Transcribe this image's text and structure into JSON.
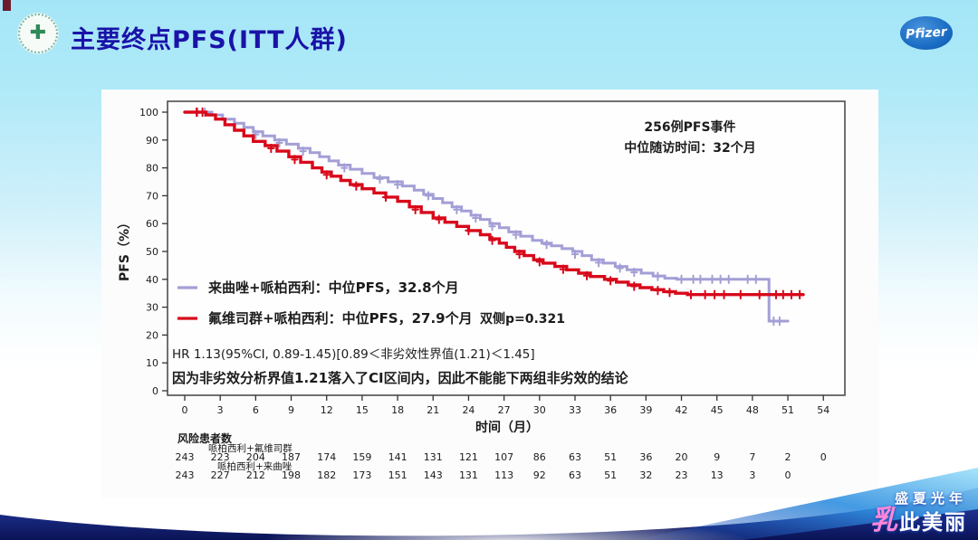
{
  "header": {
    "title": "主要终点PFS(ITT人群)",
    "logo_icon": "hospital-green-cross-emblem",
    "pfizer_label": "Pfizer"
  },
  "chart_data": {
    "type": "line",
    "subtype": "kaplan-meier-step",
    "title": "",
    "xlabel": "时间（月）",
    "ylabel": "PFS（%）",
    "xlim": [
      0,
      54
    ],
    "ylim": [
      0,
      100
    ],
    "xticks": [
      0,
      3,
      6,
      9,
      12,
      15,
      18,
      21,
      24,
      27,
      30,
      33,
      36,
      39,
      42,
      45,
      48,
      51,
      54
    ],
    "yticks": [
      0,
      10,
      20,
      30,
      40,
      50,
      60,
      70,
      80,
      90,
      100
    ],
    "grid": false,
    "annotation": {
      "line1": "256例PFS事件",
      "line2": "中位随访时间：32个月"
    },
    "series": [
      {
        "name": "来曲唑+哌柏西利",
        "legend_label": "来曲唑+哌柏西利：中位PFS，32.8个月",
        "median_months": 32.8,
        "line_color": "#a39fd6",
        "text_color": "#7b3fc0",
        "steps": [
          [
            0,
            100
          ],
          [
            2.3,
            99
          ],
          [
            3.2,
            97.5
          ],
          [
            4.2,
            96
          ],
          [
            5,
            94.5
          ],
          [
            5.8,
            93
          ],
          [
            6.6,
            91.5
          ],
          [
            7.6,
            90
          ],
          [
            8.6,
            88.5
          ],
          [
            9.6,
            87
          ],
          [
            10.6,
            85.5
          ],
          [
            11.4,
            84
          ],
          [
            12.2,
            82.5
          ],
          [
            13,
            81
          ],
          [
            14,
            79.5
          ],
          [
            15,
            78
          ],
          [
            16,
            76.5
          ],
          [
            17.2,
            75
          ],
          [
            18.4,
            73.5
          ],
          [
            19.4,
            72
          ],
          [
            20.2,
            70.5
          ],
          [
            21,
            69
          ],
          [
            21.8,
            67.5
          ],
          [
            22.6,
            66
          ],
          [
            23.4,
            64.5
          ],
          [
            24.2,
            63
          ],
          [
            25,
            61.5
          ],
          [
            25.8,
            60
          ],
          [
            26.6,
            58.5
          ],
          [
            27.4,
            57
          ],
          [
            28.4,
            55.5
          ],
          [
            29.4,
            54
          ],
          [
            30.2,
            53
          ],
          [
            31,
            52
          ],
          [
            31.9,
            51
          ],
          [
            32.8,
            50
          ],
          [
            33.6,
            48.5
          ],
          [
            34.4,
            47
          ],
          [
            35.4,
            45.8
          ],
          [
            36.4,
            44.6
          ],
          [
            37.4,
            43.4
          ],
          [
            38.6,
            42.2
          ],
          [
            39.6,
            41.2
          ],
          [
            40.6,
            40.4
          ],
          [
            41.6,
            40
          ],
          [
            49.3,
            40
          ],
          [
            49.4,
            25
          ],
          [
            51,
            25
          ]
        ],
        "censors": [
          [
            1.1,
            100
          ],
          [
            1.7,
            100
          ],
          [
            6,
            92
          ],
          [
            8,
            89
          ],
          [
            10,
            86
          ],
          [
            13.5,
            80
          ],
          [
            16.5,
            76
          ],
          [
            18,
            74
          ],
          [
            20.6,
            70
          ],
          [
            23,
            65
          ],
          [
            24.6,
            62
          ],
          [
            26,
            59
          ],
          [
            28,
            56
          ],
          [
            30.6,
            52.5
          ],
          [
            33,
            49
          ],
          [
            35,
            46
          ],
          [
            36.8,
            44
          ],
          [
            38,
            42.5
          ],
          [
            40,
            41
          ],
          [
            42,
            40
          ],
          [
            43,
            40
          ],
          [
            43.6,
            40
          ],
          [
            44.6,
            40
          ],
          [
            45.3,
            40
          ],
          [
            46,
            40
          ],
          [
            47.6,
            40
          ],
          [
            48.3,
            40
          ],
          [
            49.8,
            25
          ],
          [
            50.3,
            25
          ]
        ]
      },
      {
        "name": "氟维司群+哌柏西利",
        "legend_label": "氟维司群+哌柏西利：中位PFS，27.9个月",
        "median_months": 27.9,
        "line_color": "#d8091a",
        "text_color": "#d61d3c",
        "steps": [
          [
            0,
            100
          ],
          [
            1.8,
            99
          ],
          [
            2.6,
            97.5
          ],
          [
            3.4,
            95.5
          ],
          [
            4.2,
            93.5
          ],
          [
            5,
            91.5
          ],
          [
            5.8,
            89.5
          ],
          [
            6.8,
            88
          ],
          [
            7.8,
            86
          ],
          [
            8.8,
            84
          ],
          [
            9.8,
            82
          ],
          [
            10.8,
            80
          ],
          [
            11.6,
            78.5
          ],
          [
            12.4,
            77
          ],
          [
            13.2,
            75.5
          ],
          [
            14,
            74
          ],
          [
            15,
            72.5
          ],
          [
            16,
            71
          ],
          [
            17,
            69.5
          ],
          [
            18,
            68
          ],
          [
            19,
            66
          ],
          [
            20,
            64
          ],
          [
            21,
            62
          ],
          [
            22,
            60.5
          ],
          [
            23,
            59
          ],
          [
            24,
            57.5
          ],
          [
            25,
            56
          ],
          [
            25.8,
            54.5
          ],
          [
            26.6,
            53
          ],
          [
            27.2,
            51.5
          ],
          [
            27.9,
            50
          ],
          [
            28.7,
            48.5
          ],
          [
            29.5,
            47
          ],
          [
            30.3,
            45.8
          ],
          [
            31.3,
            44.6
          ],
          [
            32.3,
            43.4
          ],
          [
            33.3,
            42.2
          ],
          [
            34.3,
            41
          ],
          [
            35.5,
            40
          ],
          [
            36.5,
            39
          ],
          [
            37.5,
            38
          ],
          [
            38.5,
            37
          ],
          [
            39.5,
            36.3
          ],
          [
            40.5,
            35.6
          ],
          [
            41.5,
            35
          ],
          [
            42.5,
            34.5
          ],
          [
            52.3,
            34.5
          ]
        ],
        "censors": [
          [
            1,
            100
          ],
          [
            1.5,
            100
          ],
          [
            7.3,
            87
          ],
          [
            9.3,
            83
          ],
          [
            12,
            77.5
          ],
          [
            14.5,
            73.5
          ],
          [
            17,
            69.5
          ],
          [
            19.5,
            65
          ],
          [
            21.5,
            61.5
          ],
          [
            24,
            57.5
          ],
          [
            26,
            54
          ],
          [
            28.3,
            49
          ],
          [
            30,
            46.3
          ],
          [
            32,
            43.6
          ],
          [
            34,
            41.3
          ],
          [
            36,
            39.5
          ],
          [
            38,
            37.5
          ],
          [
            40,
            36
          ],
          [
            41,
            35.3
          ],
          [
            42.8,
            34.5
          ],
          [
            44,
            34.5
          ],
          [
            44.8,
            34.5
          ],
          [
            45.6,
            34.5
          ],
          [
            47,
            34.5
          ],
          [
            48.6,
            34.5
          ],
          [
            50,
            34.5
          ],
          [
            50.6,
            34.5
          ],
          [
            51.3,
            34.5
          ],
          [
            52,
            34.5
          ]
        ]
      }
    ],
    "p_value_label": "双侧p=0.321",
    "hr_text": "HR 1.13(95%CI, 0.89-1.45)[0.89＜非劣效性界值(1.21)＜1.45]",
    "conclusion_text": "因为非劣效分析界值1.21落入了CI区间内，因此不能能下两组非劣效的结论",
    "conclusion_color": "#e0131c",
    "risk_table": {
      "title": "风险患者数",
      "rows": [
        {
          "label": "哌柏西利+氟维司群",
          "values": [
            243,
            223,
            204,
            187,
            174,
            159,
            141,
            131,
            121,
            107,
            86,
            63,
            51,
            36,
            20,
            9,
            7,
            2,
            0
          ]
        },
        {
          "label": "哌柏西利+来曲唑",
          "values": [
            243,
            227,
            212,
            198,
            182,
            173,
            151,
            143,
            131,
            113,
            92,
            63,
            51,
            32,
            23,
            13,
            3,
            0
          ]
        }
      ]
    }
  },
  "footer": {
    "deco_line1": "盛夏光年",
    "deco_line2_first": "乳",
    "deco_line2_rest": "此美丽"
  }
}
